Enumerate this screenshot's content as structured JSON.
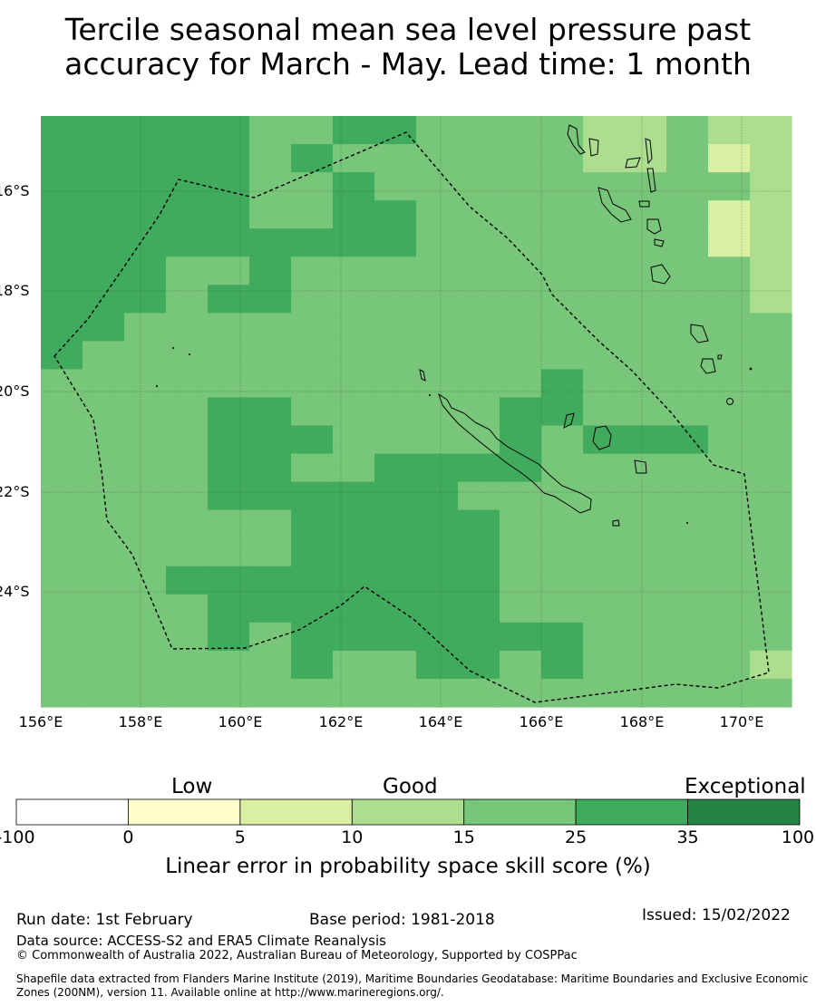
{
  "title_line1": "Tercile seasonal mean sea level pressure past",
  "title_line2": "accuracy for March - May. Lead time: 1 month",
  "map": {
    "lon_ticks": [
      "156°E",
      "158°E",
      "160°E",
      "162°E",
      "164°E",
      "166°E",
      "168°E",
      "170°E"
    ],
    "lat_ticks": [
      "16°S",
      "18°S",
      "20°S",
      "22°S",
      "24°S"
    ],
    "colors": {
      "c10_15": "#addd8e",
      "c5_10": "#d9f0a3",
      "c15_25": "#78c679",
      "c25_35": "#41ab5d"
    },
    "grid_cols": 18,
    "grid_rows": 21,
    "skill_class_rows": [
      "DDDDDCCDDCCCCAACAA",
      "DDDDDCDCCCCCCAACBA",
      "DDDDDCCDCCCCCCCCCA",
      "DDDDDCCDDCCCCCCCBA",
      "DDDDDDDDDCCCCCCCBA",
      "DDDCCDCCCCCCCCCCCA",
      "DDDCDDCCCCCCCCCCCA",
      "DDCCCCCCCCCCCCCCCC",
      "DCCCCCCCCCCCCCCCCC",
      "CCCCCCCCCCCCDCCCCC",
      "CCCCDDCCCCCDDCCCCC",
      "CCCCDDDCCCCDCDDDCC",
      "CCCCDDCCDDDDCCCCCC",
      "CCCCDDDDDDCCCCCCCC",
      "CCCCCCDDDDDCCCCCCC",
      "CCCCCCDDDDDCCCCCCC",
      "CCCDDDDDDDDCCCCCCC",
      "CCCCDDDDDDDCCCCCCC",
      "CCCCDCDDDDDDDCCCCC",
      "CCCCCCDCCDDCDCCCCA",
      "CCCCCCCCCCCCCCCCCC"
    ]
  },
  "colorbar": {
    "categories": [
      "Low",
      "Good",
      "Exceptional"
    ],
    "bins": [
      {
        "from": "-100",
        "to": "0",
        "color": "#ffffff"
      },
      {
        "from": "0",
        "to": "5",
        "color": "#ffffcc"
      },
      {
        "from": "5",
        "to": "10",
        "color": "#d9f0a3"
      },
      {
        "from": "10",
        "to": "15",
        "color": "#addd8e"
      },
      {
        "from": "15",
        "to": "25",
        "color": "#78c679"
      },
      {
        "from": "25",
        "to": "35",
        "color": "#41ab5d"
      },
      {
        "from": "35",
        "to": "100",
        "color": "#238443"
      }
    ],
    "ticks": [
      "-100",
      "0",
      "5",
      "10",
      "15",
      "25",
      "35",
      "100"
    ],
    "label": "Linear error in probability space skill score (%)"
  },
  "footer": {
    "run_date": "Run date: 1st February",
    "base_period": "Base period: 1981-2018",
    "issued": "Issued: 15/02/2022",
    "data_source": "Data source: ACCESS-S2 and ERA5 Climate Reanalysis",
    "copyright": "© Commonwealth of Australia 2022, Australian Bureau of Meteorology, Supported by COSPPac",
    "shapefile_line1": "Shapefile data extracted from Flanders Marine Institute (2019), Maritime Boundaries Geodatabase: Maritime Boundaries and Exclusive Economic",
    "shapefile_line2": "Zones (200NM), version 11. Available online at http://www.marineregions.org/."
  }
}
